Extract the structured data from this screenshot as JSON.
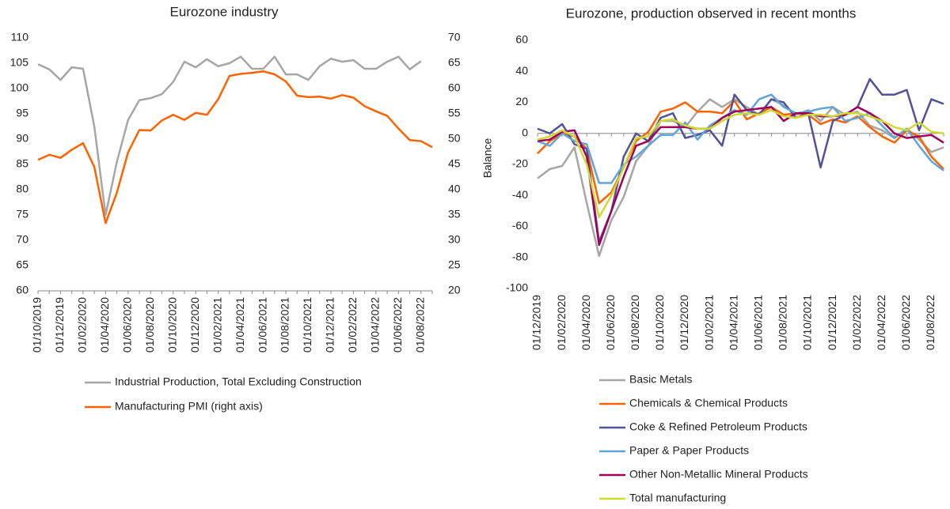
{
  "chart_data": [
    {
      "type": "line",
      "title": "Eurozone industry",
      "categories": [
        "01/10/2019",
        null,
        "01/12/2019",
        null,
        "01/02/2020",
        null,
        "01/04/2020",
        null,
        "01/06/2020",
        null,
        "01/08/2020",
        null,
        "01/10/2020",
        null,
        "01/12/2020",
        null,
        "01/02/2021",
        null,
        "01/04/2021",
        null,
        "01/06/2021",
        null,
        "01/08/2021",
        null,
        "01/10/2021",
        null,
        "01/12/2021",
        null,
        "01/02/2022",
        null,
        "01/04/2022",
        null,
        "01/06/2022",
        null,
        "01/08/2022",
        null
      ],
      "series": [
        {
          "name": "Industrial Production, Total Excluding Construction",
          "color": "#a6a6a6",
          "values": [
            104.8,
            103.8,
            101.7,
            104.2,
            103.9,
            92.5,
            75,
            85.5,
            93.8,
            97.7,
            98.1,
            98.9,
            101.3,
            105.3,
            104.2,
            105.8,
            104.4,
            105,
            106.3,
            103.9,
            103.9,
            106.3,
            102.8,
            102.8,
            101.7,
            104.4,
            105.9,
            105.3,
            105.6,
            103.9,
            103.9,
            105.3,
            106.3,
            103.8,
            105.4,
            null
          ]
        },
        {
          "name": "Manufacturing PMI (right axis)",
          "color": "#ff6200",
          "axis": "y2",
          "values": [
            45.9,
            46.9,
            46.3,
            47.9,
            49.2,
            44.5,
            33.4,
            39.4,
            47.4,
            51.8,
            51.7,
            53.7,
            54.8,
            53.8,
            55.2,
            54.8,
            57.9,
            62.5,
            62.9,
            63.1,
            63.4,
            62.8,
            61.4,
            58.6,
            58.3,
            58.4,
            58.0,
            58.7,
            58.2,
            56.5,
            55.5,
            54.6,
            52.1,
            49.8,
            49.6,
            48.4
          ]
        }
      ],
      "ylim": [
        60,
        110
      ],
      "yticks": [
        60,
        65,
        70,
        75,
        80,
        85,
        90,
        95,
        100,
        105,
        110
      ],
      "y2lim": [
        20,
        70
      ],
      "y2ticks": [
        20,
        25,
        30,
        35,
        40,
        45,
        50,
        55,
        60,
        65,
        70
      ]
    },
    {
      "type": "line",
      "title": "Eurozone, production observed in recent months",
      "y_label": "Balance",
      "categories": [
        "01/12/2019",
        null,
        "01/02/2020",
        null,
        "01/04/2020",
        null,
        "01/06/2020",
        null,
        "01/08/2020",
        null,
        "01/10/2020",
        null,
        "01/12/2020",
        null,
        "01/02/2021",
        null,
        "01/04/2021",
        null,
        "01/06/2021",
        null,
        "01/08/2021",
        null,
        "01/10/2021",
        null,
        "01/12/2021",
        null,
        "01/02/2022",
        null,
        "01/04/2022",
        null,
        "01/06/2022",
        null,
        "01/08/2022",
        null
      ],
      "series": [
        {
          "name": "Basic Metals",
          "color": "#a6a6a6",
          "values": [
            -29,
            -23,
            -21,
            -9,
            -45,
            -79,
            -56,
            -41,
            -18,
            -8,
            8,
            8,
            4,
            14,
            22,
            17,
            22,
            17,
            12,
            22,
            18,
            12,
            15,
            8,
            17,
            12,
            14,
            5,
            2,
            -3,
            3,
            -4,
            -12,
            -9
          ]
        },
        {
          "name": "Chemicals & Chemical Products",
          "color": "#ff6200",
          "values": [
            -13,
            -5,
            0,
            -2,
            -10,
            -45,
            -38,
            -22,
            -5,
            1,
            14,
            16,
            20,
            14,
            14,
            13,
            21,
            9,
            13,
            17,
            12,
            13,
            12,
            6,
            9,
            7,
            11,
            4,
            -2,
            -6,
            2,
            -2,
            -15,
            -23
          ]
        },
        {
          "name": "Coke & Refined Petroleum Products",
          "color": "#525199",
          "values": [
            3,
            0,
            6,
            -7,
            -10,
            -70,
            -50,
            -15,
            0,
            -5,
            10,
            13,
            -3,
            -1,
            2,
            -8,
            25,
            15,
            12,
            22,
            20,
            10,
            13,
            -22,
            8,
            12,
            17,
            35,
            25,
            25,
            28,
            2,
            22,
            19
          ]
        },
        {
          "name": "Paper & Paper Products",
          "color": "#60a5d9",
          "values": [
            -5,
            -8,
            0,
            -5,
            -7,
            -32,
            -32,
            -20,
            -15,
            -8,
            -1,
            -1,
            7,
            -4,
            5,
            10,
            15,
            12,
            22,
            25,
            17,
            13,
            14,
            16,
            17,
            8,
            10,
            13,
            5,
            -3,
            3,
            -8,
            -18,
            -24
          ]
        },
        {
          "name": "Other Non-Metallic Mineral Products",
          "color": "#a0005a",
          "values": [
            -5,
            -4,
            1,
            2,
            -15,
            -72,
            -50,
            -28,
            -8,
            -5,
            4,
            4,
            4,
            3,
            3,
            10,
            14,
            15,
            16,
            17,
            8,
            13,
            13,
            11,
            11,
            12,
            17,
            13,
            8,
            0,
            -3,
            -2,
            -1,
            -6
          ]
        },
        {
          "name": "Total manufacturing",
          "color": "#d0d92e",
          "values": [
            -4,
            -2,
            2,
            -2,
            -20,
            -54,
            -40,
            -22,
            -3,
            -2,
            8,
            9,
            5,
            3,
            3,
            8,
            12,
            13,
            12,
            15,
            11,
            10,
            12,
            12,
            11,
            13,
            13,
            11,
            8,
            4,
            2,
            7,
            1,
            0
          ]
        }
      ],
      "ylim": [
        -100,
        60
      ],
      "yticks": [
        -100,
        -80,
        -60,
        -40,
        -20,
        0,
        20,
        40,
        60
      ]
    }
  ]
}
